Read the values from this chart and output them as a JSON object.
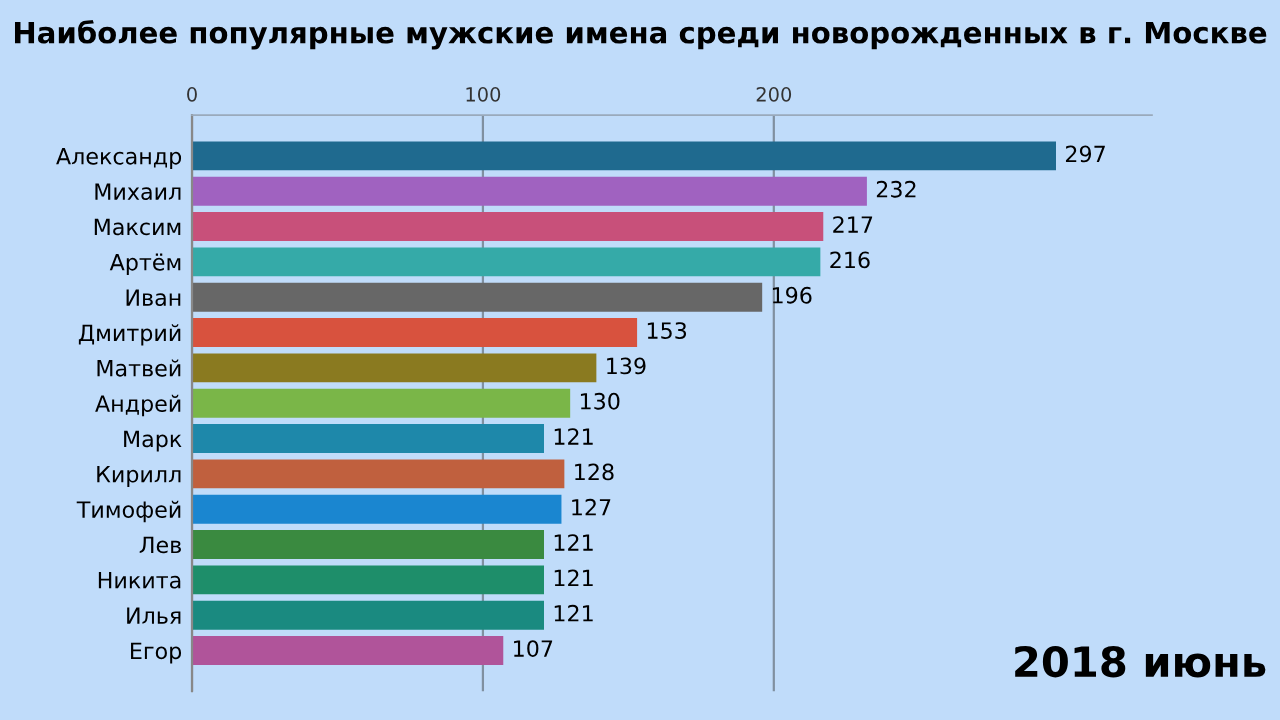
{
  "chart_data": {
    "type": "bar",
    "orientation": "horizontal",
    "title": "Наиболее популярные мужские имена среди новорожденных в г. Москве",
    "categories": [
      "Александр",
      "Михаил",
      "Максим",
      "Артём",
      "Иван",
      "Дмитрий",
      "Матвей",
      "Андрей",
      "Марк",
      "Кирилл",
      "Тимофей",
      "Лев",
      "Никита",
      "Илья",
      "Егор"
    ],
    "values": [
      297,
      232,
      217,
      216,
      196,
      153,
      139,
      130,
      121,
      128,
      127,
      121,
      121,
      121,
      107
    ],
    "colors": [
      "#1f6a8f",
      "#a062c0",
      "#c8507a",
      "#35aaa8",
      "#676767",
      "#d8523e",
      "#8a7a20",
      "#7ab648",
      "#1e88aa",
      "#c0603e",
      "#1a86d0",
      "#3a8a40",
      "#1e8e6a",
      "#1a8a80",
      "#b0549a"
    ],
    "xlim": [
      0,
      330
    ],
    "xticks": [
      0,
      100,
      200
    ],
    "grid": "x",
    "data_labels": true,
    "annotations": [
      "2018 июнь"
    ]
  }
}
